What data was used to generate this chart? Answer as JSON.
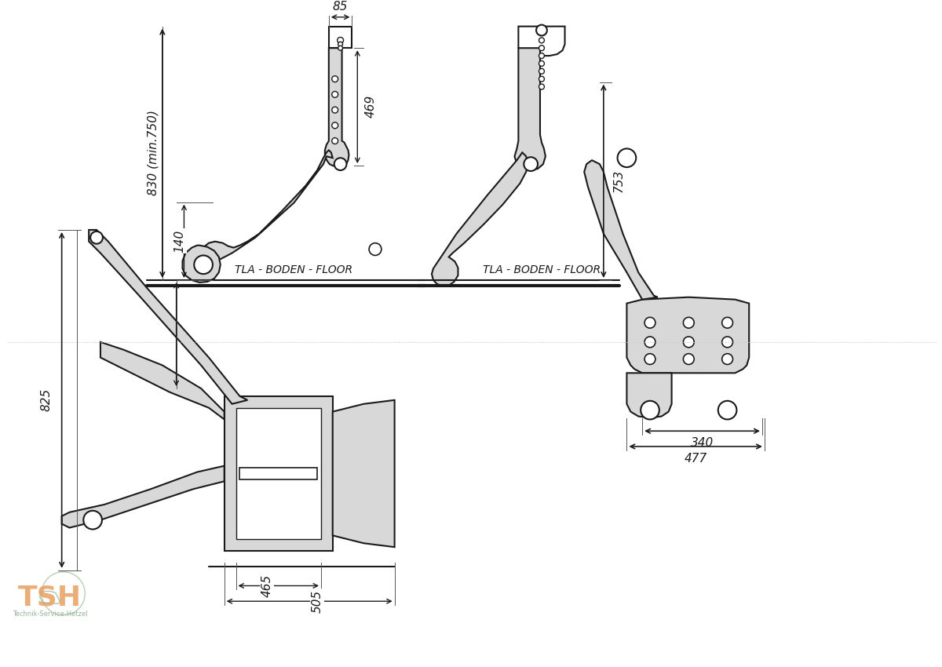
{
  "bg_color": "#ffffff",
  "line_color": "#1a1a1a",
  "dim_color": "#1a1a1a",
  "fill_color": "#e8e8e8",
  "logo_tsh_color": "#e8a060",
  "logo_tree_color": "#8aab8a",
  "dimensions": {
    "top_left": {
      "height_830": "830 (min.750)",
      "height_140": "140",
      "height_469": "469",
      "width_85": "85",
      "floor_label": "TLA - BODEN - FLOOR"
    },
    "top_right": {
      "height_753": "753",
      "floor_label": "TLA - BODEN - FLOOR"
    },
    "bottom_left": {
      "height_825": "825",
      "width_465": "465",
      "width_505": "505"
    },
    "bottom_right": {
      "width_340": "340",
      "width_477": "477"
    }
  },
  "figsize": [
    12.0,
    8.5
  ],
  "dpi": 100
}
